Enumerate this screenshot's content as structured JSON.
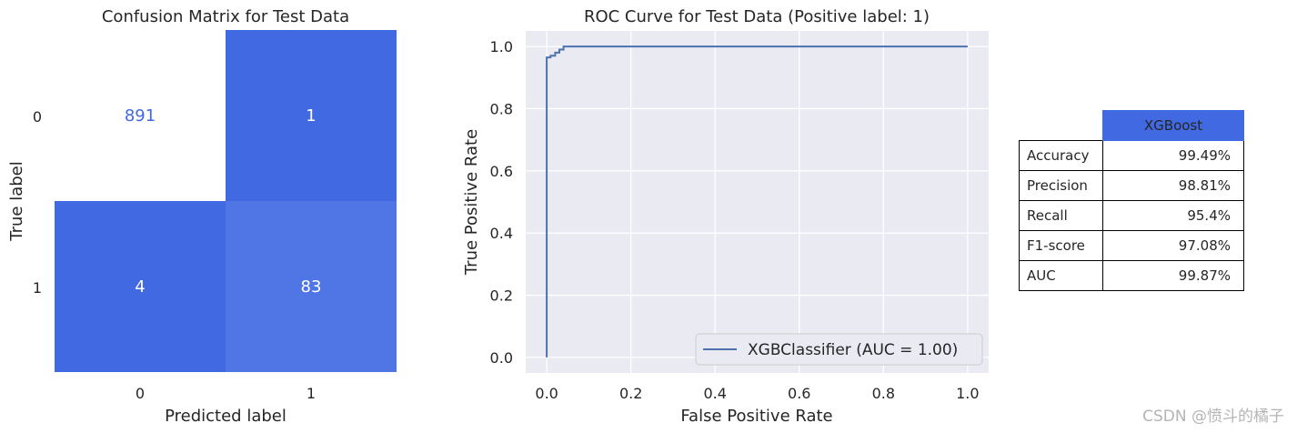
{
  "colors": {
    "cm_dark": "#4169e1",
    "cm_light": "#5076e5",
    "roc_line": "#4c72b0",
    "plot_bg": "#eaeaf2",
    "text_dark_cell": "#4169e1"
  },
  "chart_data": [
    {
      "type": "heatmap",
      "title": "Confusion Matrix for Test Data",
      "xlabel": "Predicted label",
      "ylabel": "True label",
      "x_categories": [
        "0",
        "1"
      ],
      "y_categories": [
        "0",
        "1"
      ],
      "values": [
        [
          891,
          1
        ],
        [
          4,
          83
        ]
      ],
      "cell_labels": [
        [
          "891",
          "1"
        ],
        [
          "4",
          "83"
        ]
      ]
    },
    {
      "type": "line",
      "title": "ROC Curve for Test Data (Positive label: 1)",
      "xlabel": "False Positive Rate",
      "ylabel": "True Positive Rate",
      "xlim": [
        -0.05,
        1.05
      ],
      "ylim": [
        -0.05,
        1.05
      ],
      "xticks": [
        "0.0",
        "0.2",
        "0.4",
        "0.6",
        "0.8",
        "1.0"
      ],
      "yticks": [
        "0.0",
        "0.2",
        "0.4",
        "0.6",
        "0.8",
        "1.0"
      ],
      "legend": "XGBClassifier (AUC = 1.00)",
      "legend_position": "lower-right",
      "series": [
        {
          "name": "XGBClassifier (AUC = 1.00)",
          "x": [
            0.0,
            0.0,
            0.0,
            0.0,
            0.009,
            0.009,
            0.02,
            0.02,
            0.03,
            0.03,
            0.04,
            0.04,
            0.05,
            0.05,
            1.0
          ],
          "y": [
            0.0,
            0.0,
            0.965,
            0.965,
            0.965,
            0.97,
            0.97,
            0.98,
            0.98,
            0.99,
            0.99,
            1.0,
            1.0,
            1.0,
            1.0
          ]
        }
      ]
    },
    {
      "type": "table",
      "column_header": "XGBoost",
      "rows": [
        {
          "label": "Accuracy",
          "value": "99.49%"
        },
        {
          "label": "Precision",
          "value": "98.81%"
        },
        {
          "label": "Recall",
          "value": "95.4%"
        },
        {
          "label": "F1-score",
          "value": "97.08%"
        },
        {
          "label": "AUC",
          "value": "99.87%"
        }
      ]
    }
  ],
  "watermark": "CSDN @愤斗的橘子"
}
